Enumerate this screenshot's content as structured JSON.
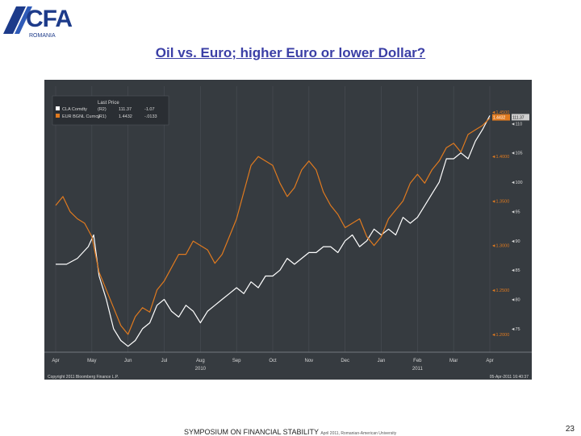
{
  "slide": {
    "logo_text": "CFA",
    "logo_sub": "ROMANIA",
    "title": "Oil vs. Euro; higher Euro or lower Dollar?",
    "footer_main": "SYMPOSIUM ON FINANCIAL STABILITY",
    "footer_small": "April 2011, Romanian-American University",
    "page_number": "23"
  },
  "colors": {
    "chart_bg": "#363b40",
    "oil_line": "#ffffff",
    "eur_line": "#e07a1f",
    "grid": "#4a4f55"
  },
  "chart_data": {
    "type": "line",
    "legend": {
      "header": "Last Price",
      "entries": [
        {
          "label": "CLA Comdty",
          "axis": "(R2)",
          "last": "111.37",
          "change": "-1.07"
        },
        {
          "label": "EUR BGNL Curncy",
          "axis": "(R1)",
          "last": "1.4432",
          "change": "-.0133"
        }
      ],
      "placement": "top-left"
    },
    "x_ticks": [
      "Apr",
      "May",
      "Jun",
      "Jul",
      "Aug",
      "Sep",
      "Oct",
      "Nov",
      "Dec",
      "Jan",
      "Feb",
      "Mar",
      "Apr"
    ],
    "x_years": [
      {
        "label": "2010",
        "month_index": 4
      },
      {
        "label": "2011",
        "month_index": 10
      }
    ],
    "eur_axis_ticks": [
      "1.4500",
      "1.4000",
      "1.3500",
      "1.3000",
      "1.2500",
      "1.2000"
    ],
    "oil_axis_ticks": [
      "110",
      "105",
      "100",
      "95",
      "90",
      "85",
      "80",
      "75"
    ],
    "eur_range": [
      1.18,
      1.47
    ],
    "oil_range": [
      71,
      115
    ],
    "last_labels": {
      "eur": "1.4432",
      "oil": "111.37"
    },
    "copyright": "Copyright 2011 Bloomberg Finance L.P.",
    "timestamp": "05-Apr-2011 16:40:37",
    "series": [
      {
        "name": "CLA Comdty",
        "axis": "right",
        "x": [
          0,
          0.3,
          0.6,
          0.9,
          1.05,
          1.2,
          1.4,
          1.6,
          1.8,
          2.0,
          2.2,
          2.4,
          2.6,
          2.8,
          3.0,
          3.2,
          3.4,
          3.6,
          3.8,
          4.0,
          4.2,
          4.4,
          4.6,
          4.8,
          5.0,
          5.2,
          5.4,
          5.6,
          5.8,
          6.0,
          6.2,
          6.4,
          6.6,
          6.8,
          7.0,
          7.2,
          7.4,
          7.6,
          7.8,
          8.0,
          8.2,
          8.4,
          8.6,
          8.8,
          9.0,
          9.2,
          9.4,
          9.6,
          9.8,
          10.0,
          10.2,
          10.4,
          10.6,
          10.8,
          11.0,
          11.2,
          11.4,
          11.6,
          11.8,
          12.0
        ],
        "values": [
          86,
          86,
          87,
          89,
          91,
          84,
          80,
          75,
          73,
          72,
          73,
          75,
          76,
          79,
          80,
          78,
          77,
          79,
          78,
          76,
          78,
          79,
          80,
          81,
          82,
          81,
          83,
          82,
          84,
          84,
          85,
          87,
          86,
          87,
          88,
          88,
          89,
          89,
          88,
          90,
          91,
          89,
          90,
          92,
          91,
          92,
          91,
          94,
          93,
          94,
          96,
          98,
          100,
          104,
          104,
          105,
          104,
          107,
          109,
          111.37
        ]
      },
      {
        "name": "EUR BGNL Curncy",
        "axis": "left",
        "x": [
          0,
          0.2,
          0.4,
          0.6,
          0.8,
          1.0,
          1.2,
          1.4,
          1.6,
          1.8,
          2.0,
          2.2,
          2.4,
          2.6,
          2.8,
          3.0,
          3.2,
          3.4,
          3.6,
          3.8,
          4.0,
          4.2,
          4.4,
          4.6,
          4.8,
          5.0,
          5.2,
          5.4,
          5.6,
          5.8,
          6.0,
          6.2,
          6.4,
          6.6,
          6.8,
          7.0,
          7.2,
          7.4,
          7.6,
          7.8,
          8.0,
          8.2,
          8.4,
          8.6,
          8.8,
          9.0,
          9.2,
          9.4,
          9.6,
          9.8,
          10.0,
          10.2,
          10.4,
          10.6,
          10.8,
          11.0,
          11.2,
          11.4,
          11.6,
          11.8,
          12.0
        ],
        "values": [
          1.345,
          1.355,
          1.338,
          1.33,
          1.325,
          1.31,
          1.27,
          1.25,
          1.23,
          1.21,
          1.2,
          1.22,
          1.23,
          1.225,
          1.25,
          1.26,
          1.275,
          1.29,
          1.29,
          1.305,
          1.3,
          1.295,
          1.28,
          1.29,
          1.31,
          1.33,
          1.36,
          1.39,
          1.4,
          1.395,
          1.39,
          1.37,
          1.355,
          1.365,
          1.385,
          1.395,
          1.385,
          1.36,
          1.345,
          1.335,
          1.32,
          1.325,
          1.33,
          1.31,
          1.3,
          1.31,
          1.33,
          1.34,
          1.35,
          1.37,
          1.38,
          1.37,
          1.385,
          1.395,
          1.41,
          1.415,
          1.405,
          1.425,
          1.43,
          1.435,
          1.4432
        ]
      }
    ]
  }
}
